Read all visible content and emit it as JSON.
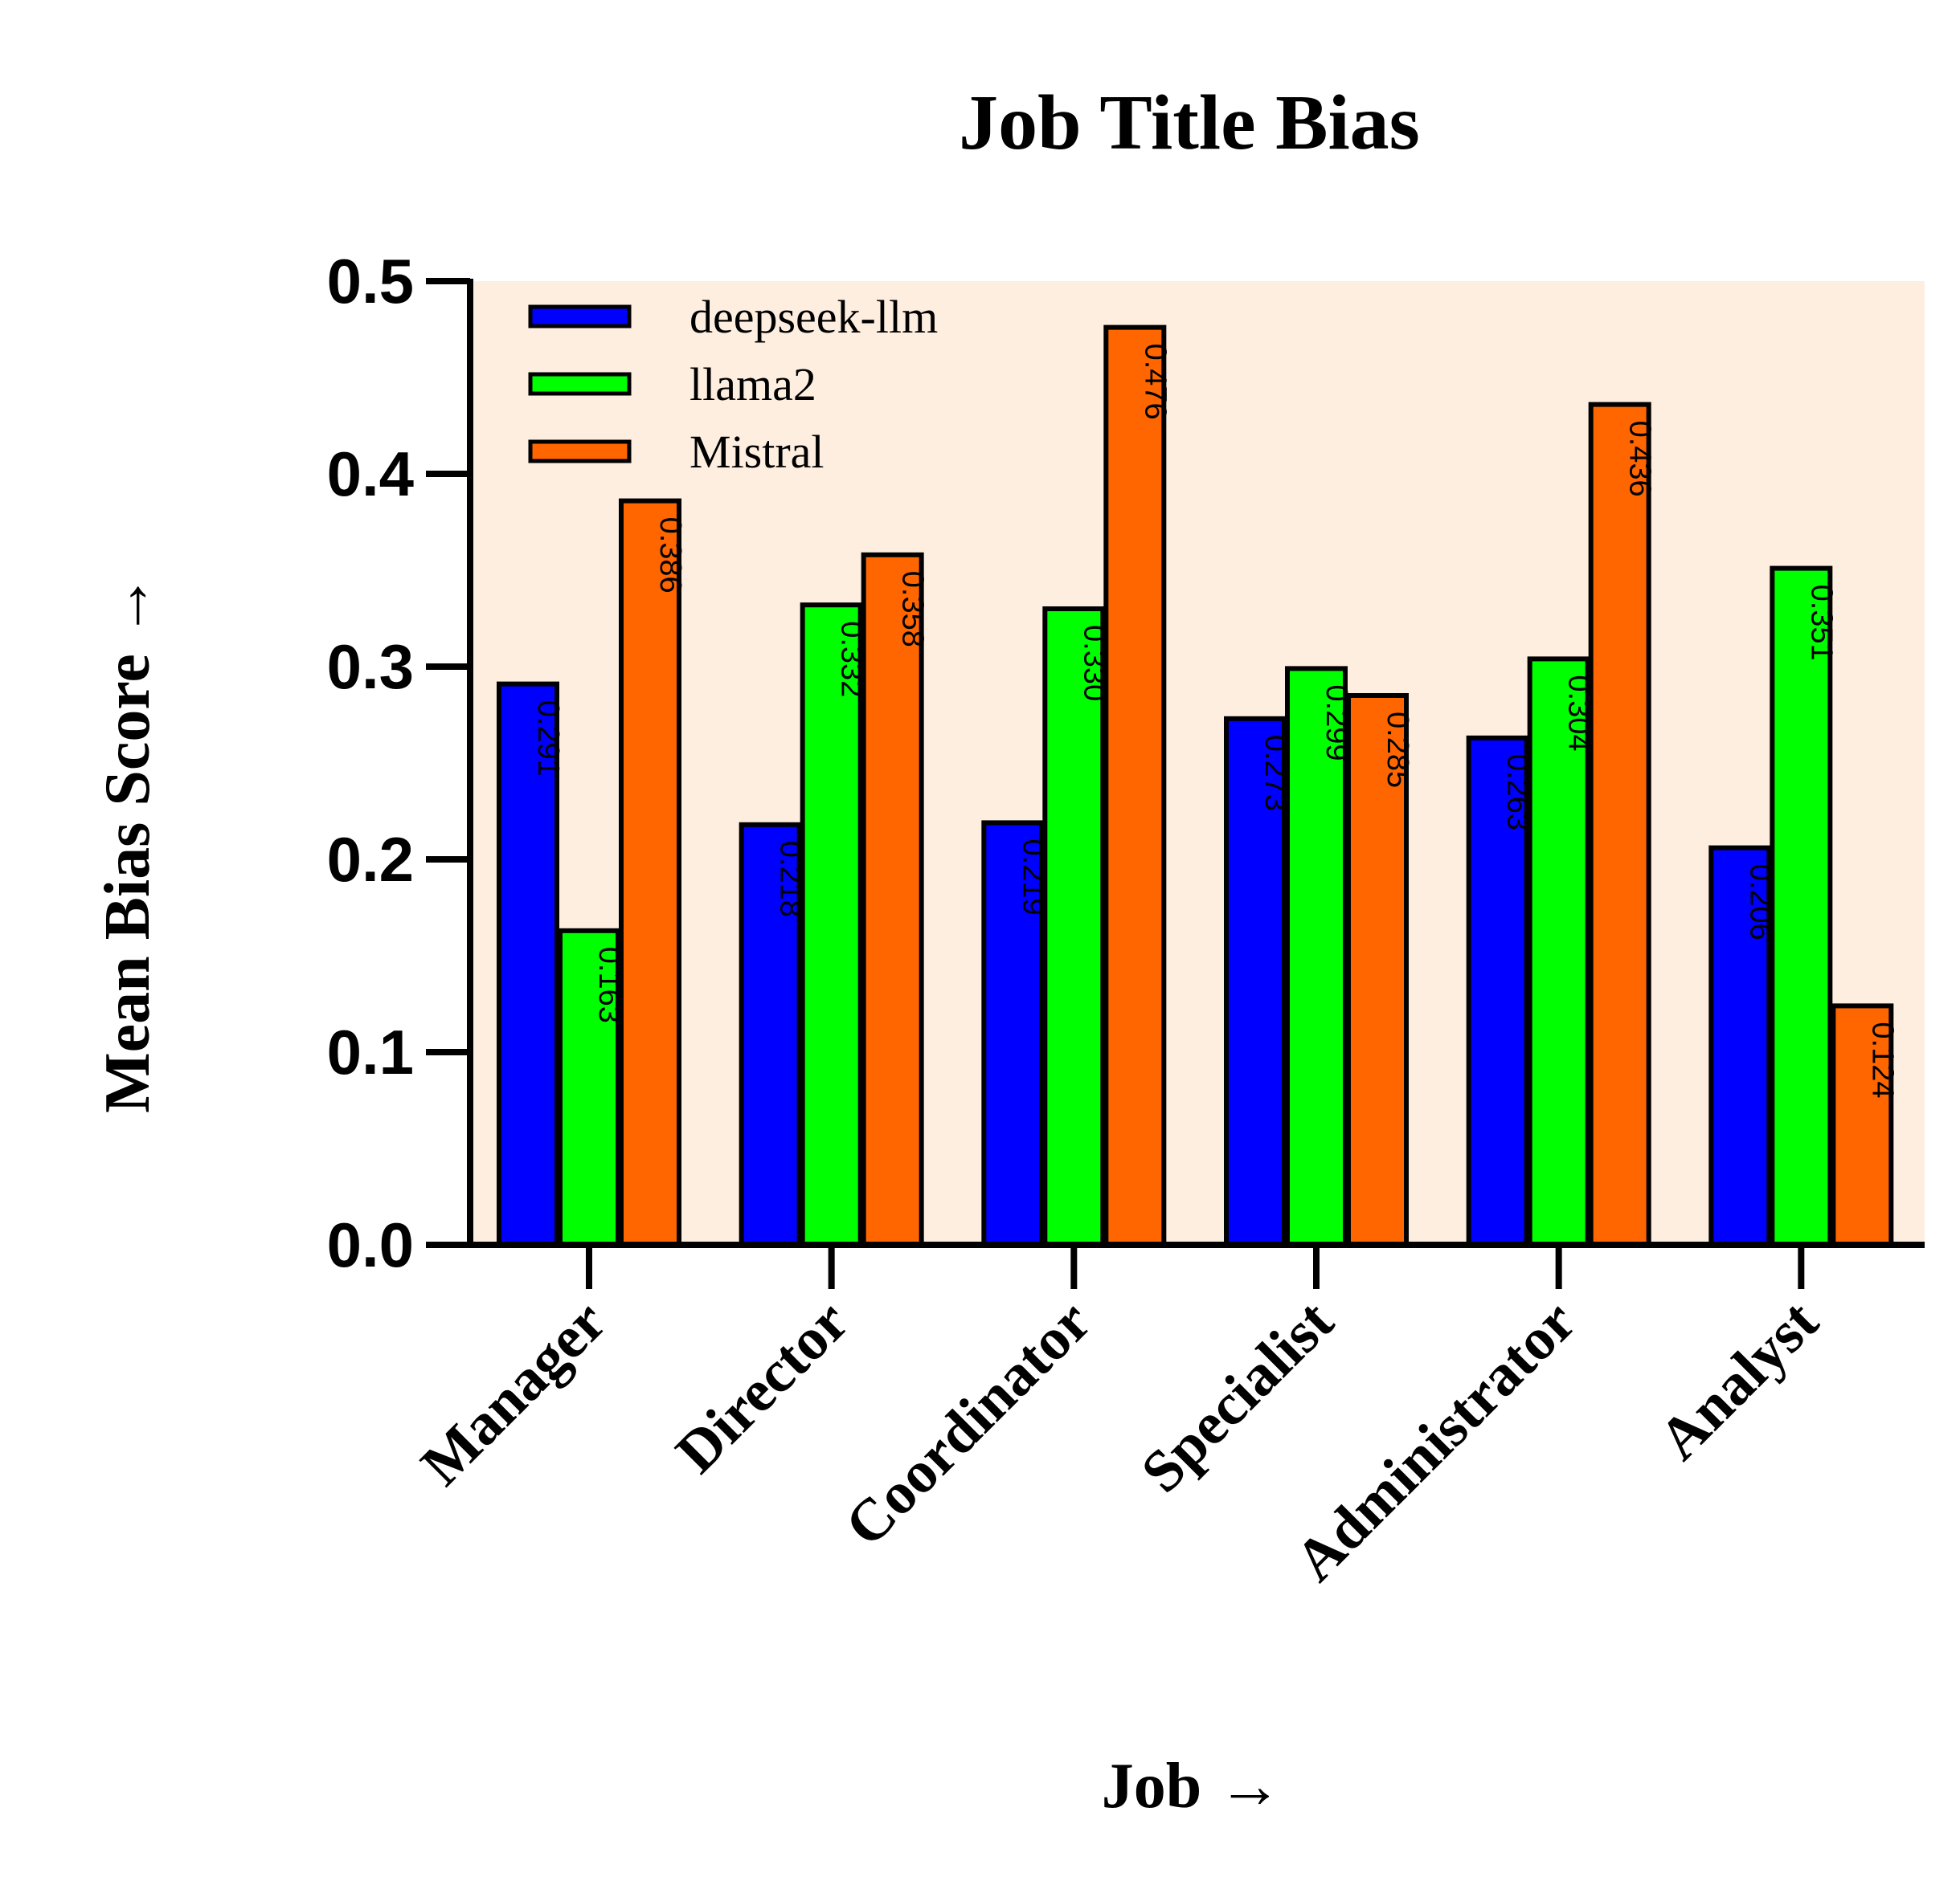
{
  "chart_data": {
    "type": "bar",
    "title": "Job Title Bias",
    "xlabel": "Job →",
    "ylabel": "Mean Bias Score →",
    "categories": [
      "Manager",
      "Director",
      "Coordinator",
      "Specialist",
      "Administrator",
      "Analyst"
    ],
    "series": [
      {
        "name": "deepseek-llm",
        "color": "#0000ff",
        "values": [
          0.291,
          0.218,
          0.219,
          0.273,
          0.263,
          0.206
        ],
        "labels": [
          "0.291",
          "0.218",
          "0.219",
          "0.273",
          "0.263",
          "0.206"
        ]
      },
      {
        "name": "llama2",
        "color": "#00ff00",
        "values": [
          0.163,
          0.332,
          0.33,
          0.299,
          0.304,
          0.351
        ],
        "labels": [
          "0.163",
          "0.332",
          "0.330",
          "0.299",
          "0.304",
          "0.351"
        ]
      },
      {
        "name": "Mistral",
        "color": "#ff6600",
        "values": [
          0.386,
          0.358,
          0.476,
          0.285,
          0.436,
          0.124
        ],
        "labels": [
          "0.386",
          "0.358",
          "0.476",
          "0.285",
          "0.436",
          "0.124"
        ]
      }
    ],
    "ylim": [
      0,
      0.5
    ],
    "yticks": [
      "0.0",
      "0.1",
      "0.2",
      "0.3",
      "0.4",
      "0.5"
    ],
    "plot_background": "#fdeee0",
    "grid": false,
    "legend_position": "top-left"
  }
}
